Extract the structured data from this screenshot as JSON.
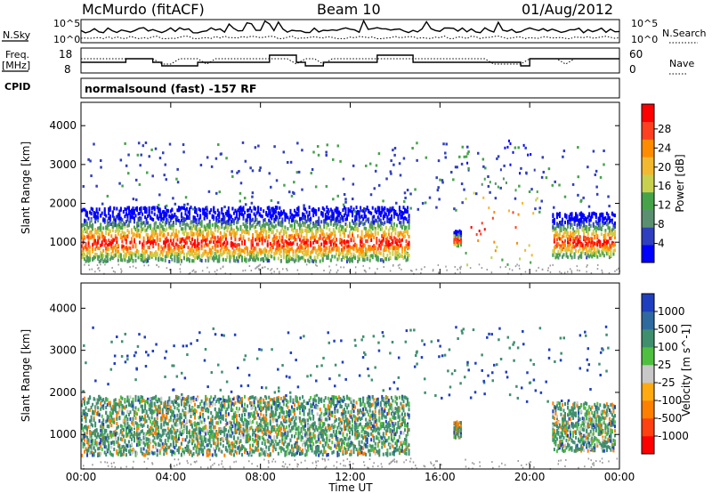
{
  "header": {
    "station": "McMurdo (fitACF)",
    "beam": "Beam 10",
    "date": "01/Aug/2012"
  },
  "noise_panel": {
    "left_label": "N.Sky",
    "right_label": "N.Search",
    "yticks": [
      "10^5",
      "10^0"
    ]
  },
  "freq_panel": {
    "left_label_1": "Freq.",
    "left_label_2": "[MHz]",
    "yticks_left": [
      "18",
      "8"
    ],
    "right_label": "Nave",
    "yticks_right": [
      "60",
      "0"
    ]
  },
  "cpid": {
    "label": "CPID",
    "value": "normalsound (fast) -157 RF"
  },
  "colors": {
    "velocity_positive": "#1f3fbf",
    "velocity_negative": "#ff7f00",
    "ground_scatter": "#9a9a9a"
  },
  "chart_data": [
    {
      "type": "heatmap",
      "title": "",
      "xlabel": "",
      "ylabel": "Slant Range [km]",
      "xlim": [
        "00:00",
        "24:00"
      ],
      "ylim": [
        180,
        4600
      ],
      "x_ticks": [
        "00:00",
        "04:00",
        "08:00",
        "12:00",
        "16:00",
        "20:00",
        "00:00"
      ],
      "y_ticks": [
        1000,
        2000,
        3000,
        4000
      ],
      "colorbar": {
        "label": "Power [dB]",
        "ticks": [
          4,
          8,
          12,
          16,
          20,
          24,
          28
        ],
        "range": [
          0,
          30
        ],
        "colors": [
          "#0000ff",
          "#2f3fbf",
          "#5a9070",
          "#46a34a",
          "#c8d050",
          "#f2b830",
          "#ff8c00",
          "#ff4020",
          "#ff0000"
        ]
      },
      "scatter_regions": [
        {
          "t_start": 0.0,
          "t_end": 14.6,
          "r_low": 500,
          "r_high": 1900,
          "note": "main echo band"
        },
        {
          "t_start": 16.6,
          "t_end": 16.9,
          "r_low": 900,
          "r_high": 1300
        },
        {
          "t_start": 21.0,
          "t_end": 23.8,
          "r_low": 600,
          "r_high": 1750
        },
        {
          "t_start": 17.0,
          "t_end": 20.3,
          "r_low": 250,
          "r_high": 3600,
          "note": "sparse"
        }
      ]
    },
    {
      "type": "heatmap",
      "title": "",
      "xlabel": "Time UT",
      "ylabel": "Slant Range [km]",
      "xlim": [
        "00:00",
        "24:00"
      ],
      "ylim": [
        180,
        4600
      ],
      "x_ticks": [
        "00:00",
        "04:00",
        "08:00",
        "12:00",
        "16:00",
        "20:00",
        "00:00"
      ],
      "y_ticks": [
        1000,
        2000,
        3000,
        4000
      ],
      "colorbar": {
        "label": "Velocity [m s^-1]",
        "ticks": [
          1000,
          500,
          100,
          25,
          -25,
          -100,
          -500,
          -1000
        ],
        "colors": [
          "#1f3fbf",
          "#2f6a9f",
          "#3f8f6f",
          "#4fbf3f",
          "#c8c8c8",
          "#ffaa10",
          "#ff7f00",
          "#ff4010",
          "#ff0000"
        ]
      },
      "scatter_regions": [
        {
          "t_start": 0.0,
          "t_end": 14.6,
          "r_low": 500,
          "r_high": 1900,
          "note": "mostly green, orange patches"
        },
        {
          "t_start": 16.6,
          "t_end": 16.9,
          "r_low": 900,
          "r_high": 1300
        },
        {
          "t_start": 21.0,
          "t_end": 23.8,
          "r_low": 600,
          "r_high": 1750
        }
      ]
    }
  ]
}
